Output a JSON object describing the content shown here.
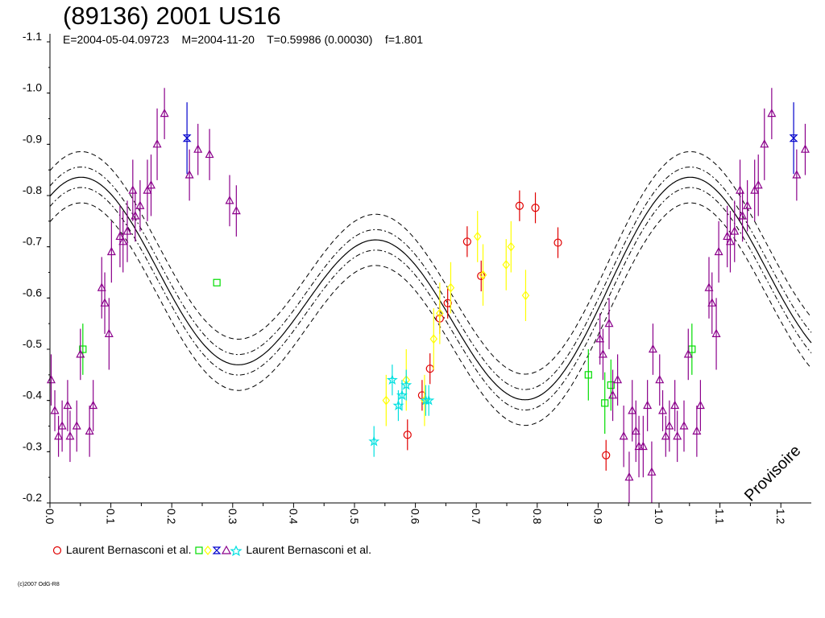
{
  "title": "(89136) 2001 US16",
  "subtitle": "E=2004-05-04.09723    M=2004-11-20    T=0.59986 (0.00030)    f=1.801",
  "watermark": "Provisoire",
  "copyright": "(c)2007 OdG-R8",
  "legend": {
    "entry1": "Laurent Bernasconi et al.",
    "entry2": "Laurent Bernasconi et al."
  },
  "chart_data": {
    "type": "scatter",
    "title": "(89136) 2001 US16",
    "xlim": [
      0.0,
      1.25
    ],
    "ylim": [
      -1.1,
      -0.2
    ],
    "y_inverted": true,
    "x_ticks": [
      "0.0",
      "0.1",
      "0.2",
      "0.3",
      "0.4",
      "0.5",
      "0.6",
      "0.7",
      "0.8",
      "0.9",
      "1.0",
      "1.1",
      "1.2"
    ],
    "y_ticks": [
      "-1.1",
      "-1.0",
      "-0.9",
      "-0.8",
      "-0.7",
      "-0.6",
      "-0.5",
      "-0.4",
      "-0.3",
      "-0.2"
    ],
    "fit_curve": {
      "style": "solid",
      "envelopes": [
        "dash-dot ±0.02",
        "dashed ±0.05"
      ]
    },
    "colors": {
      "circle": "#e00000",
      "square": "#00dd00",
      "diamond": "#ffff00",
      "hourglass": "#0000cc",
      "triangle": "#8b008b",
      "star": "#00e0e0",
      "text": "#000000"
    },
    "series": [
      {
        "marker": "circle",
        "color": "#e00000",
        "points": [
          [
            0.587,
            -0.333,
            0.03
          ],
          [
            0.611,
            -0.41,
            0.03
          ],
          [
            0.624,
            -0.462,
            0.03
          ],
          [
            0.64,
            -0.56,
            0.03
          ],
          [
            0.653,
            -0.59,
            0.03
          ],
          [
            0.685,
            -0.71,
            0.03
          ],
          [
            0.708,
            -0.643,
            0.03
          ],
          [
            0.771,
            -0.78,
            0.03
          ],
          [
            0.797,
            -0.776,
            0.03
          ],
          [
            0.834,
            -0.708,
            0.03
          ],
          [
            0.913,
            -0.293,
            0.03
          ]
        ]
      },
      {
        "marker": "square",
        "color": "#00dd00",
        "points": [
          [
            0.054,
            -0.5,
            0.05
          ],
          [
            0.274,
            -0.63,
            0.0
          ],
          [
            0.884,
            -0.45,
            0.05
          ],
          [
            0.911,
            -0.395,
            0.06
          ],
          [
            0.921,
            -0.43,
            0.05
          ],
          [
            1.054,
            -0.5,
            0.05
          ]
        ]
      },
      {
        "marker": "diamond",
        "color": "#ffff00",
        "points": [
          [
            0.552,
            -0.4,
            0.05
          ],
          [
            0.585,
            -0.44,
            0.06
          ],
          [
            0.615,
            -0.4,
            0.05
          ],
          [
            0.63,
            -0.52,
            0.06
          ],
          [
            0.64,
            -0.57,
            0.06
          ],
          [
            0.658,
            -0.62,
            0.05
          ],
          [
            0.702,
            -0.72,
            0.05
          ],
          [
            0.711,
            -0.645,
            0.06
          ],
          [
            0.749,
            -0.665,
            0.05
          ],
          [
            0.781,
            -0.605,
            0.05
          ],
          [
            0.757,
            -0.7,
            0.05
          ]
        ]
      },
      {
        "marker": "hourglass",
        "color": "#0000cc",
        "points": [
          [
            0.225,
            -0.912,
            0.07
          ],
          [
            1.221,
            -0.912,
            0.07
          ]
        ]
      },
      {
        "marker": "triangle",
        "color": "#8b008b",
        "points": [
          [
            0.002,
            -0.44,
            0.05
          ],
          [
            0.008,
            -0.38,
            0.04
          ],
          [
            0.014,
            -0.33,
            0.04
          ],
          [
            0.02,
            -0.35,
            0.05
          ],
          [
            0.029,
            -0.39,
            0.05
          ],
          [
            0.033,
            -0.33,
            0.05
          ],
          [
            0.044,
            -0.35,
            0.05
          ],
          [
            0.05,
            -0.49,
            0.05
          ],
          [
            0.065,
            -0.34,
            0.05
          ],
          [
            0.071,
            -0.39,
            0.05
          ],
          [
            0.085,
            -0.62,
            0.06
          ],
          [
            0.09,
            -0.59,
            0.06
          ],
          [
            0.097,
            -0.53,
            0.07
          ],
          [
            0.101,
            -0.69,
            0.06
          ],
          [
            0.115,
            -0.72,
            0.06
          ],
          [
            0.12,
            -0.71,
            0.06
          ],
          [
            0.127,
            -0.73,
            0.06
          ],
          [
            0.136,
            -0.81,
            0.06
          ],
          [
            0.14,
            -0.76,
            0.05
          ],
          [
            0.148,
            -0.78,
            0.05
          ],
          [
            0.16,
            -0.81,
            0.06
          ],
          [
            0.166,
            -0.82,
            0.06
          ],
          [
            0.176,
            -0.9,
            0.07
          ],
          [
            0.188,
            -0.96,
            0.05
          ],
          [
            0.229,
            -0.84,
            0.05
          ],
          [
            0.243,
            -0.89,
            0.05
          ],
          [
            0.262,
            -0.88,
            0.05
          ],
          [
            0.295,
            -0.79,
            0.05
          ],
          [
            0.306,
            -0.77,
            0.05
          ],
          [
            0.903,
            -0.52,
            0.05
          ],
          [
            0.908,
            -0.49,
            0.05
          ],
          [
            0.918,
            -0.55,
            0.05
          ],
          [
            0.924,
            -0.41,
            0.05
          ],
          [
            0.932,
            -0.44,
            0.05
          ],
          [
            0.942,
            -0.33,
            0.06
          ],
          [
            0.951,
            -0.25,
            0.05
          ],
          [
            0.956,
            -0.38,
            0.06
          ],
          [
            0.962,
            -0.34,
            0.06
          ],
          [
            0.967,
            -0.31,
            0.06
          ],
          [
            0.974,
            -0.31,
            0.06
          ],
          [
            0.981,
            -0.39,
            0.05
          ],
          [
            0.988,
            -0.26,
            0.06
          ],
          [
            0.99,
            -0.5,
            0.05
          ],
          [
            1.001,
            -0.44,
            0.05
          ],
          [
            1.006,
            -0.38,
            0.04
          ],
          [
            1.011,
            -0.33,
            0.04
          ],
          [
            1.017,
            -0.35,
            0.05
          ],
          [
            1.026,
            -0.39,
            0.05
          ],
          [
            1.03,
            -0.33,
            0.05
          ],
          [
            1.041,
            -0.35,
            0.05
          ],
          [
            1.048,
            -0.49,
            0.05
          ],
          [
            1.062,
            -0.34,
            0.05
          ],
          [
            1.068,
            -0.39,
            0.05
          ],
          [
            1.082,
            -0.62,
            0.06
          ],
          [
            1.087,
            -0.59,
            0.06
          ],
          [
            1.094,
            -0.53,
            0.07
          ],
          [
            1.098,
            -0.69,
            0.06
          ],
          [
            1.112,
            -0.72,
            0.06
          ],
          [
            1.117,
            -0.71,
            0.06
          ],
          [
            1.124,
            -0.73,
            0.06
          ],
          [
            1.133,
            -0.81,
            0.06
          ],
          [
            1.137,
            -0.76,
            0.05
          ],
          [
            1.145,
            -0.78,
            0.05
          ],
          [
            1.157,
            -0.81,
            0.06
          ],
          [
            1.163,
            -0.82,
            0.06
          ],
          [
            1.173,
            -0.9,
            0.07
          ],
          [
            1.185,
            -0.96,
            0.05
          ],
          [
            1.226,
            -0.84,
            0.05
          ],
          [
            1.24,
            -0.89,
            0.05
          ]
        ]
      },
      {
        "marker": "star",
        "color": "#00e0e0",
        "points": [
          [
            0.532,
            -0.32,
            0.03
          ],
          [
            0.562,
            -0.44,
            0.03
          ],
          [
            0.572,
            -0.39,
            0.03
          ],
          [
            0.578,
            -0.41,
            0.03
          ],
          [
            0.585,
            -0.43,
            0.03
          ],
          [
            0.617,
            -0.4,
            0.03
          ],
          [
            0.622,
            -0.4,
            0.03
          ]
        ]
      }
    ]
  }
}
